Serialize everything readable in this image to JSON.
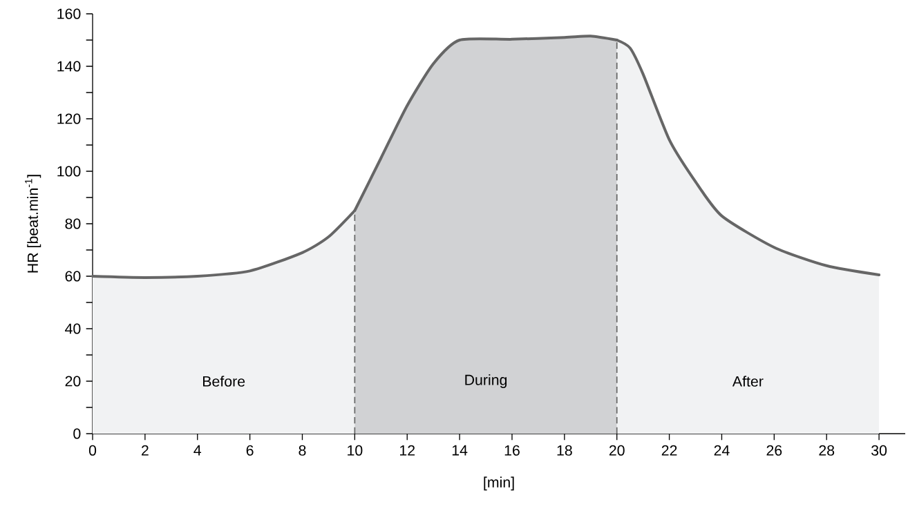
{
  "chart_data": {
    "type": "area",
    "xlabel": "[min]",
    "ylabel": "HR [beat.min$^{-1}$]",
    "xlim": [
      0,
      31
    ],
    "ylim": [
      0,
      160
    ],
    "xticks": [
      0,
      2,
      4,
      6,
      8,
      10,
      12,
      14,
      16,
      18,
      20,
      22,
      24,
      26,
      28,
      30
    ],
    "yticks": [
      0,
      {
        "value": 10,
        "label": null
      },
      20,
      {
        "value": 30,
        "label": null
      },
      40,
      {
        "value": 50,
        "label": null
      },
      60,
      {
        "value": 70,
        "label": null
      },
      80,
      {
        "value": 90,
        "label": null
      },
      100,
      {
        "value": 110,
        "label": null
      },
      120,
      {
        "value": 130,
        "label": null
      },
      140,
      {
        "value": 150,
        "label": null
      },
      160
    ],
    "grid": false,
    "series": [
      {
        "color": "#f1f2f3",
        "x": [
          0,
          2,
          4,
          6,
          8,
          9,
          10
        ],
        "values": [
          60,
          59.5,
          60,
          62,
          69,
          75,
          85
        ]
      },
      {
        "color": "#d1d2d4",
        "x": [
          10,
          11,
          12,
          13,
          14,
          16,
          18,
          19,
          20
        ],
        "values": [
          85,
          105,
          125,
          141,
          150,
          150.3,
          151,
          151.5,
          150
        ]
      },
      {
        "color": "#f1f2f3",
        "x": [
          20,
          20.5,
          21,
          22,
          23,
          24,
          26,
          28,
          30
        ],
        "values": [
          150,
          147,
          137,
          112,
          96,
          83,
          71,
          64,
          60.5
        ]
      }
    ],
    "ref_lines": [
      {
        "axis": "x",
        "value": 10,
        "line_style": "dashed",
        "color": "#666666"
      },
      {
        "axis": "x",
        "value": 20,
        "line_style": "dashed",
        "color": "#666666"
      }
    ],
    "annotations": [
      "Before",
      "During",
      "After"
    ]
  }
}
